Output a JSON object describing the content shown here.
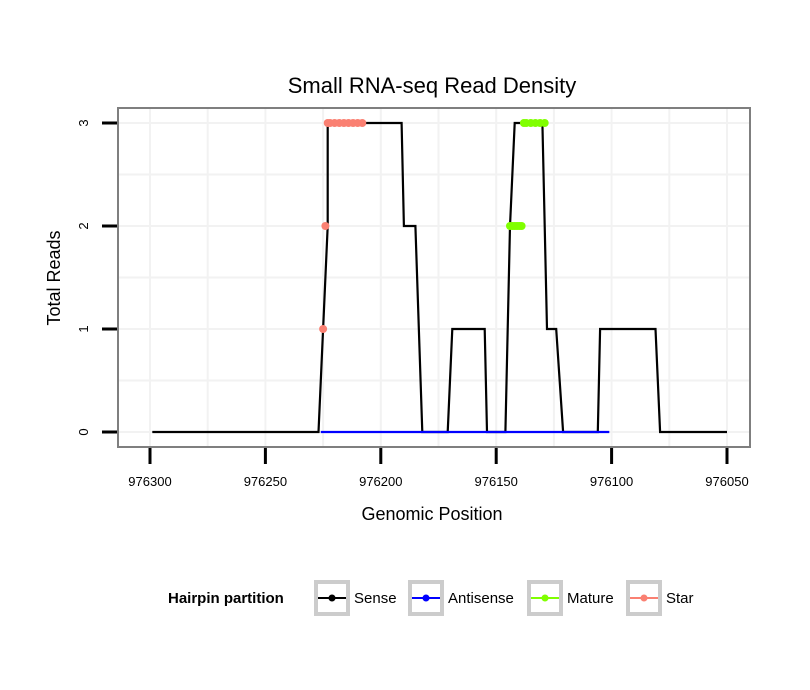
{
  "chart_data": {
    "type": "line",
    "title": "Small RNA-seq Read Density",
    "xlabel": "Genomic Position",
    "ylabel": "Total Reads",
    "xlim": [
      976300,
      976050
    ],
    "x_reversed": true,
    "ylim": [
      0,
      3
    ],
    "x_ticks": [
      976300,
      976250,
      976200,
      976150,
      976100,
      976050
    ],
    "x_tick_labels": [
      "976300",
      "976250",
      "976200",
      "976150",
      "976100",
      "976050"
    ],
    "y_ticks": [
      0,
      1,
      2,
      3
    ],
    "y_tick_labels": [
      "0",
      "1",
      "2",
      "3"
    ],
    "grid": true,
    "legend": {
      "title": "Hairpin partition",
      "position": "bottom",
      "entries": [
        {
          "label": "Sense",
          "color": "#000000"
        },
        {
          "label": "Antisense",
          "color": "#0000ff"
        },
        {
          "label": "Mature",
          "color": "#80ff00"
        },
        {
          "label": "Star",
          "color": "#fa8072"
        }
      ]
    },
    "series": [
      {
        "name": "Sense",
        "color": "#000000",
        "x": [
          976299,
          976227,
          976225,
          976223,
          976223,
          976193,
          976191,
          976190,
          976186,
          976185,
          976182,
          976180,
          976179,
          976171,
          976169,
          976168,
          976155,
          976154,
          976152,
          976151,
          976146,
          976144,
          976142,
          976142,
          976130,
          976129,
          976128,
          976125,
          976124,
          976121,
          976120,
          976118,
          976117,
          976108,
          976106,
          976105,
          976081,
          976079,
          976078,
          976076,
          976075,
          976050
        ],
        "values": [
          0,
          0,
          1,
          2,
          3,
          3,
          3,
          2,
          2,
          2,
          0,
          0,
          0,
          0,
          1,
          1,
          1,
          0,
          0,
          0,
          0,
          2,
          3,
          3,
          3,
          2,
          1,
          1,
          1,
          0,
          0,
          0,
          0,
          0,
          0,
          1,
          1,
          0,
          0,
          0,
          0,
          0
        ]
      },
      {
        "name": "Antisense",
        "color": "#0000ff",
        "x": [
          976226,
          976101
        ],
        "values": [
          0,
          0
        ]
      },
      {
        "name": "Mature",
        "color": "#80ff00",
        "x": [
          976144,
          976143,
          976142,
          976141,
          976140,
          976139,
          976138,
          976137,
          976135,
          976133,
          976131,
          976129
        ],
        "values": [
          2,
          2,
          2,
          2,
          2,
          2,
          3,
          3,
          3,
          3,
          3,
          3
        ]
      },
      {
        "name": "Star",
        "color": "#fa8072",
        "x": [
          976225,
          976224,
          976223,
          976222,
          976220,
          976218,
          976216,
          976214,
          976212,
          976210,
          976208
        ],
        "values": [
          1,
          2,
          3,
          3,
          3,
          3,
          3,
          3,
          3,
          3,
          3
        ]
      }
    ]
  }
}
